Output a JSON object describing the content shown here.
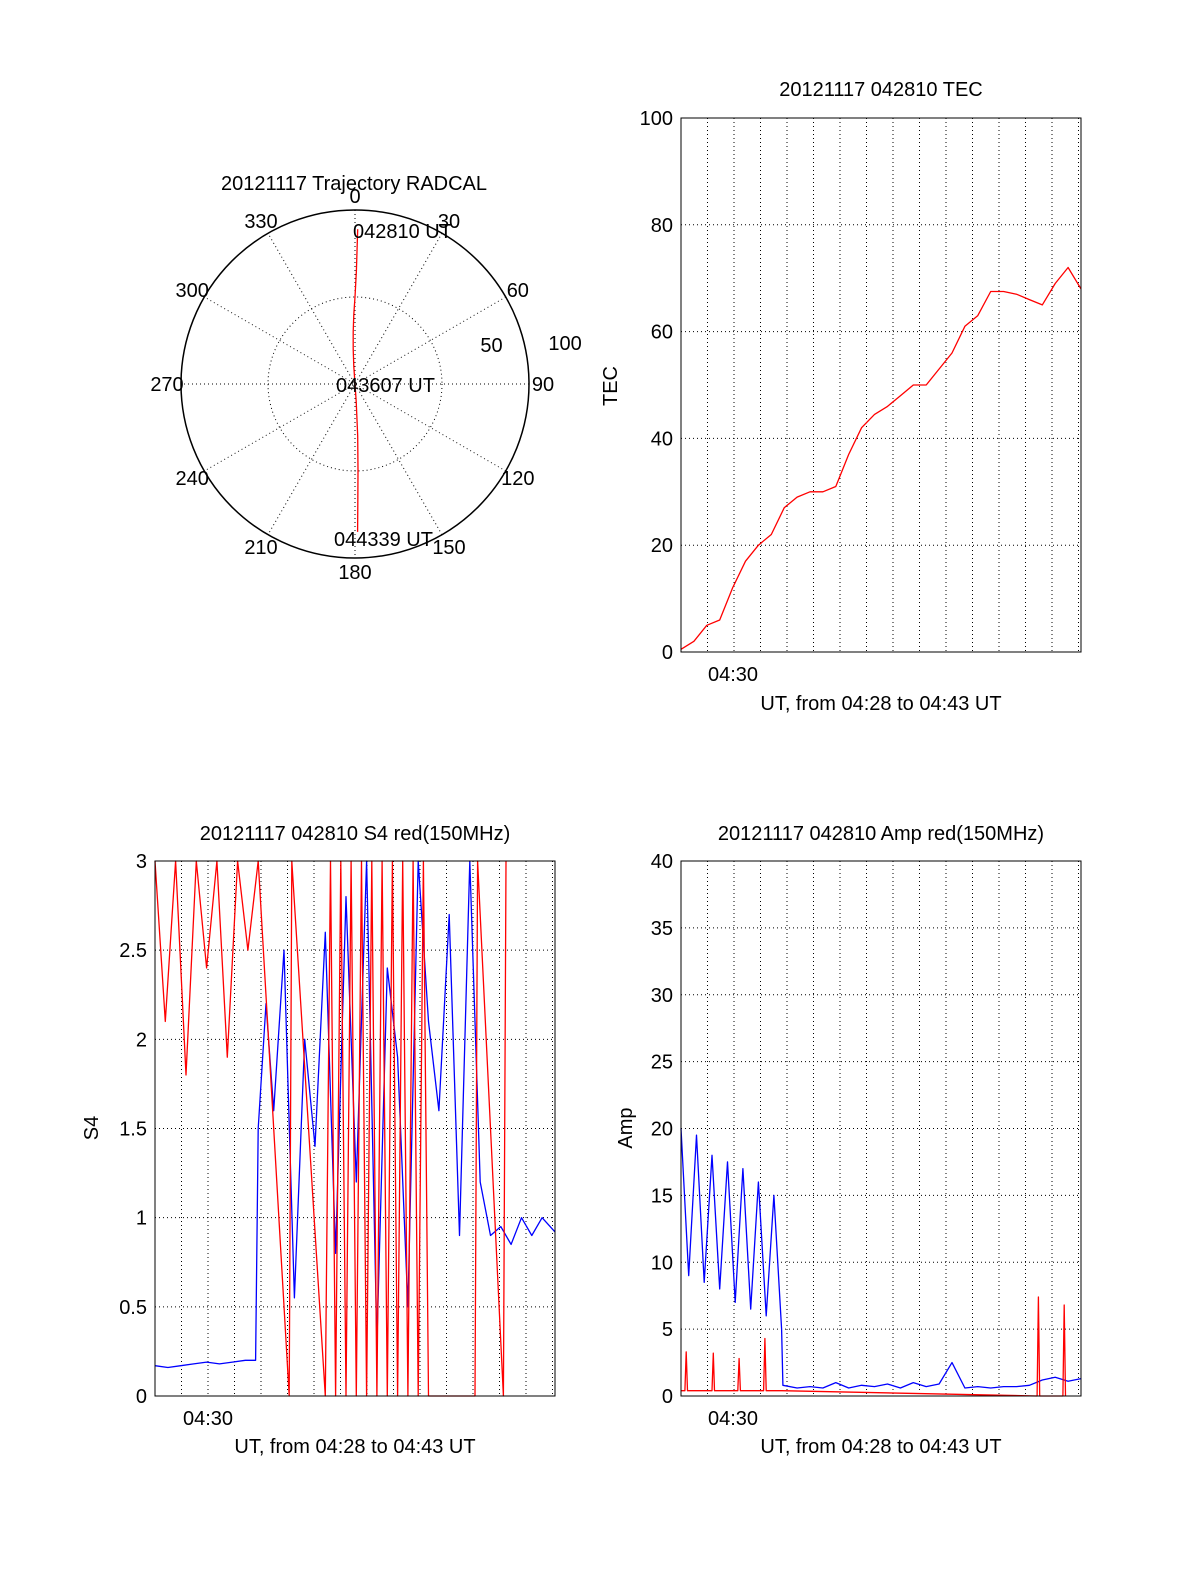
{
  "colors": {
    "red": "#ff0000",
    "blue": "#0000ff",
    "axis": "#000000",
    "grid": "#000000"
  },
  "chart_data": [
    {
      "type": "polar",
      "title": "20121117 Trajectory RADCAL",
      "angle_labels": [
        "0",
        "30",
        "60",
        "90",
        "120",
        "150",
        "180",
        "210",
        "240",
        "270",
        "300",
        "330"
      ],
      "radius_labels": [
        "50",
        "100"
      ],
      "rlim": [
        0,
        100
      ],
      "grid": true,
      "series": [
        {
          "color": "red",
          "azimuth_deg": [
            1.0,
            0.9,
            0.7,
            0.0,
            -1.0,
            -2.0,
            -2.9,
            -3.8,
            -4.4,
            -4.0,
            -3.0,
            -2.0,
            -1.3,
            -1.0
          ],
          "radius": [
            89.0,
            80.0,
            65.0,
            50.0,
            40.0,
            30.0,
            20.0,
            10.0,
            1.0,
            10.0,
            30.0,
            50.0,
            70.0,
            85.0
          ]
        }
      ],
      "annotations": [
        "042810 UT",
        "043607 UT",
        "044339 UT"
      ]
    },
    {
      "type": "line",
      "title": "20121117 042810 TEC",
      "ylabel": "TEC",
      "xlabel": "UT, from 04:28 to 04:43 UT",
      "xtick_labels": [
        "04:30"
      ],
      "xlim": [
        0,
        15.5
      ],
      "ylim": [
        0,
        100
      ],
      "yticks": [
        0,
        20,
        40,
        60,
        80,
        100
      ],
      "grid": true,
      "series": [
        {
          "color": "red",
          "x": [
            0.0,
            0.5,
            1.0,
            1.5,
            2.0,
            2.5,
            3.0,
            3.5,
            4.0,
            4.5,
            5.0,
            5.5,
            6.0,
            6.5,
            7.0,
            7.5,
            8.0,
            8.5,
            9.0,
            9.5,
            10.0,
            10.5,
            11.0,
            11.5,
            12.0,
            12.5,
            13.0,
            13.5,
            14.0,
            14.5,
            15.0,
            15.5
          ],
          "y": [
            0.5,
            2.0,
            5.0,
            6.0,
            12.0,
            17.0,
            20.0,
            22.0,
            27.0,
            29.0,
            30.0,
            30.0,
            31.0,
            37.0,
            42.0,
            44.5,
            46.0,
            48.0,
            50.0,
            50.0,
            53.0,
            56.0,
            61.0,
            63.0,
            67.5,
            67.5,
            67.0,
            66.0,
            65.0,
            69.0,
            72.0,
            68.0
          ]
        }
      ]
    },
    {
      "type": "line",
      "title": "20121117 042810 S4 red(150MHz)",
      "ylabel": "S4",
      "xlabel": "UT, from 04:28 to 04:43 UT",
      "xtick_labels": [
        "04:30"
      ],
      "xlim": [
        0,
        15.5
      ],
      "ylim": [
        0,
        3
      ],
      "yticks": [
        0,
        0.5,
        1,
        1.5,
        2,
        2.5,
        3
      ],
      "ytick_labels": [
        "0",
        "0.5",
        "1",
        "1.5",
        "2",
        "2.5",
        "3"
      ],
      "grid": true,
      "series": [
        {
          "color": "blue",
          "x": [
            0.0,
            0.5,
            1.0,
            1.5,
            2.0,
            2.5,
            3.0,
            3.5,
            3.9,
            4.0,
            4.3,
            4.6,
            5.0,
            5.4,
            5.8,
            6.2,
            6.6,
            7.0,
            7.4,
            7.8,
            8.2,
            8.6,
            9.0,
            9.4,
            9.8,
            10.2,
            10.6,
            11.0,
            11.4,
            11.8,
            12.2,
            12.6,
            13.0,
            13.4,
            13.8,
            14.2,
            14.6,
            15.0,
            15.5
          ],
          "y": [
            0.17,
            0.16,
            0.17,
            0.18,
            0.19,
            0.18,
            0.19,
            0.2,
            0.2,
            1.5,
            2.2,
            1.6,
            2.5,
            0.55,
            2.0,
            1.4,
            2.6,
            0.8,
            2.8,
            1.2,
            3.0,
            0.3,
            2.4,
            1.9,
            0.5,
            3.0,
            2.1,
            1.6,
            2.7,
            0.9,
            3.0,
            1.2,
            0.9,
            0.95,
            0.85,
            1.0,
            0.9,
            1.0,
            0.92
          ]
        },
        {
          "color": "red",
          "x": [
            0.0,
            0.4,
            0.8,
            1.2,
            1.6,
            2.0,
            2.4,
            2.8,
            3.2,
            3.6,
            4.0,
            5.2,
            5.3,
            6.6,
            6.8,
            7.0,
            7.2,
            7.4,
            7.6,
            7.8,
            8.0,
            8.2,
            8.4,
            8.6,
            8.8,
            9.0,
            9.2,
            9.4,
            9.6,
            9.8,
            10.0,
            10.2,
            10.4,
            10.6,
            12.4,
            12.5,
            13.5,
            13.6
          ],
          "y": [
            3.0,
            2.1,
            3.0,
            1.8,
            3.0,
            2.4,
            3.0,
            1.9,
            3.0,
            2.5,
            3.0,
            0.0,
            3.0,
            0.0,
            3.0,
            0.0,
            3.0,
            0.0,
            3.0,
            0.0,
            3.0,
            0.0,
            3.0,
            0.0,
            3.0,
            0.0,
            3.0,
            0.0,
            3.0,
            0.0,
            3.0,
            0.0,
            3.0,
            0.0,
            0.0,
            3.0,
            0.0,
            3.0
          ]
        }
      ]
    },
    {
      "type": "line",
      "title": "20121117 042810 Amp red(150MHz)",
      "ylabel": "Amp",
      "xlabel": "UT, from 04:28 to 04:43 UT",
      "xtick_labels": [
        "04:30"
      ],
      "xlim": [
        0,
        15.5
      ],
      "ylim": [
        0,
        40
      ],
      "yticks": [
        0,
        5,
        10,
        15,
        20,
        25,
        30,
        35,
        40
      ],
      "grid": true,
      "series": [
        {
          "color": "blue",
          "x": [
            0.0,
            0.3,
            0.6,
            0.9,
            1.2,
            1.5,
            1.8,
            2.1,
            2.4,
            2.7,
            3.0,
            3.3,
            3.6,
            3.9,
            3.95,
            4.5,
            5.0,
            5.5,
            6.0,
            6.5,
            7.0,
            7.5,
            8.0,
            8.5,
            9.0,
            9.5,
            10.0,
            10.5,
            11.0,
            11.5,
            12.0,
            12.5,
            13.0,
            13.5,
            14.0,
            14.5,
            15.0,
            15.5
          ],
          "y": [
            20.0,
            9.0,
            19.5,
            8.5,
            18.0,
            8.0,
            17.5,
            7.0,
            17.0,
            6.5,
            16.0,
            6.0,
            15.0,
            5.0,
            0.8,
            0.6,
            0.7,
            0.6,
            1.0,
            0.6,
            0.8,
            0.7,
            0.9,
            0.6,
            1.0,
            0.7,
            0.9,
            2.5,
            0.6,
            0.7,
            0.6,
            0.7,
            0.7,
            0.8,
            1.2,
            1.4,
            1.1,
            1.3
          ]
        },
        {
          "color": "red",
          "x": [
            0.0,
            0.15,
            0.2,
            0.25,
            1.2,
            1.25,
            1.3,
            2.2,
            2.25,
            2.3,
            3.2,
            3.25,
            3.3,
            3.9,
            13.8,
            13.85,
            13.9,
            14.8,
            14.85,
            14.9
          ],
          "y": [
            0.4,
            0.4,
            3.3,
            0.4,
            0.4,
            3.2,
            0.4,
            0.4,
            2.8,
            0.4,
            0.4,
            4.3,
            0.4,
            0.4,
            0.0,
            7.4,
            0.0,
            0.0,
            6.8,
            0.0
          ]
        }
      ]
    }
  ]
}
